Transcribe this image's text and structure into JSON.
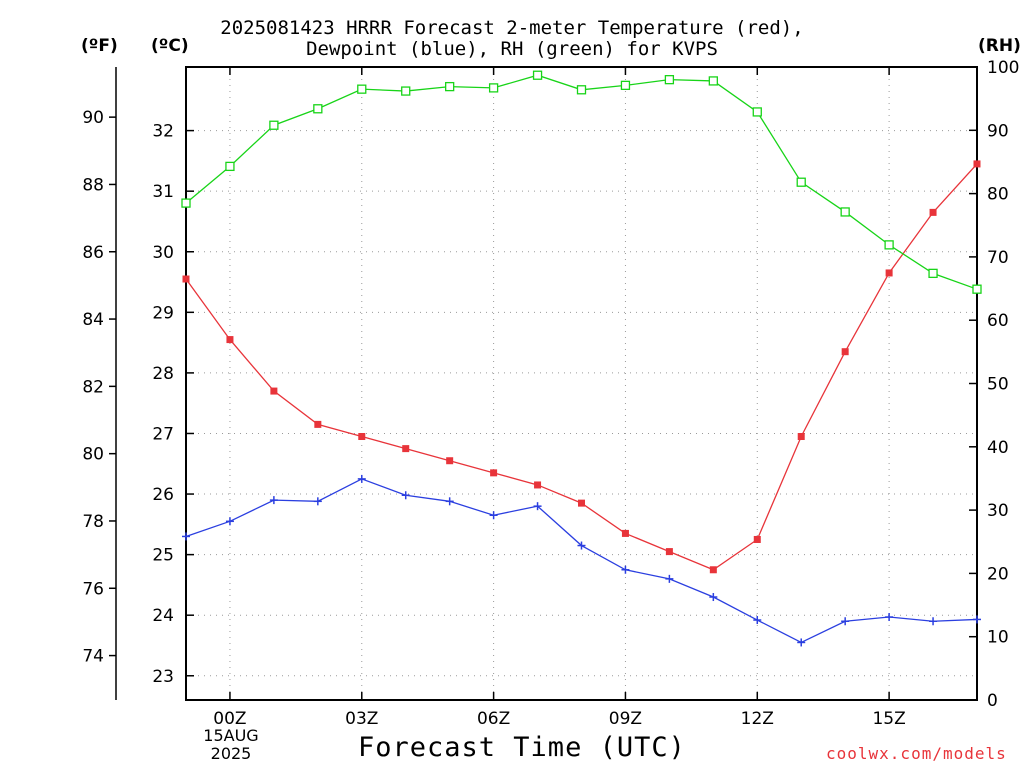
{
  "title_line1": "2025081423 HRRR Forecast 2-meter Temperature (red),",
  "title_line2": "Dewpoint (blue), RH (green) for KVPS",
  "units": {
    "fahrenheit": "(ºF)",
    "celsius": "(ºC)",
    "rh": "(RH)"
  },
  "date_labels": {
    "day": "15AUG",
    "year": "2025"
  },
  "credit": "coolwx.com/models",
  "colors": {
    "temperature": "#e8343a",
    "dewpoint": "#2b3fe0",
    "rh": "#18d418",
    "grid": "#9a9a9a"
  },
  "chart_data": {
    "type": "line",
    "xlabel": "Forecast Time (UTC)",
    "x": [
      -1,
      0,
      1,
      2,
      3,
      4,
      5,
      6,
      7,
      8,
      9,
      10,
      11,
      12,
      13,
      14,
      15,
      16,
      17
    ],
    "xlim": [
      -1,
      17
    ],
    "x_ticks": [
      {
        "x": 0,
        "label": "00Z"
      },
      {
        "x": 3,
        "label": "03Z"
      },
      {
        "x": 6,
        "label": "06Z"
      },
      {
        "x": 9,
        "label": "09Z"
      },
      {
        "x": 12,
        "label": "12Z"
      },
      {
        "x": 15,
        "label": "15Z"
      }
    ],
    "y_left_celsius": {
      "ylim": [
        22.6,
        33.05
      ],
      "ticks": [
        23,
        24,
        25,
        26,
        27,
        28,
        29,
        30,
        31,
        32
      ]
    },
    "y_left_fahrenheit": {
      "ticks": [
        74,
        76,
        78,
        80,
        82,
        84,
        86,
        88,
        90
      ]
    },
    "y_right_rh": {
      "ylim": [
        0,
        100
      ],
      "ticks": [
        0,
        10,
        20,
        30,
        40,
        50,
        60,
        70,
        80,
        90,
        100
      ]
    },
    "series": [
      {
        "name": "Temperature (red)",
        "axis": "celsius",
        "marker": "filled-square",
        "values": [
          29.55,
          28.55,
          27.7,
          27.15,
          26.95,
          26.75,
          26.55,
          26.35,
          26.15,
          25.85,
          25.35,
          25.05,
          24.75,
          25.25,
          26.95,
          28.35,
          29.65,
          30.65,
          31.45
        ]
      },
      {
        "name": "Dewpoint (blue)",
        "axis": "celsius",
        "marker": "plus",
        "values": [
          25.3,
          25.55,
          25.9,
          25.88,
          26.25,
          25.98,
          25.88,
          25.65,
          25.8,
          25.15,
          24.75,
          24.6,
          24.3,
          23.92,
          23.55,
          23.9,
          23.97,
          23.9,
          23.93
        ]
      },
      {
        "name": "RH (green)",
        "axis": "rh",
        "marker": "open-square",
        "values": [
          78.5,
          84.3,
          90.8,
          93.4,
          96.5,
          96.2,
          96.9,
          96.7,
          98.7,
          96.4,
          97.1,
          98.0,
          97.8,
          92.9,
          81.8,
          77.1,
          71.9,
          67.4,
          64.9
        ]
      }
    ]
  }
}
